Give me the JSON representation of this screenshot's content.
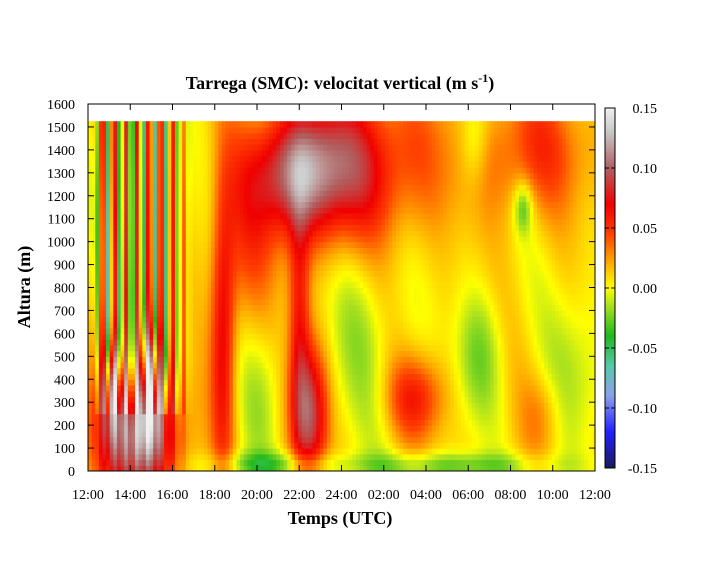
{
  "chart_data": {
    "type": "heatmap",
    "title": "Tarrega (SMC): velocitat vertical (m s",
    "title_superscript": "-1",
    "title_close": ")",
    "xlabel": "Temps (UTC)",
    "ylabel": "Altura (m)",
    "x_ticks": [
      "12:00",
      "14:00",
      "16:00",
      "18:00",
      "20:00",
      "22:00",
      "24:00",
      "02:00",
      "04:00",
      "06:00",
      "08:00",
      "10:00",
      "12:00"
    ],
    "y_ticks": [
      0,
      100,
      200,
      300,
      400,
      500,
      600,
      700,
      800,
      900,
      1000,
      1100,
      1200,
      1300,
      1400,
      1500,
      1600
    ],
    "ylim": [
      0,
      1600
    ],
    "data_top_altitude": 1525,
    "colorbar": {
      "range": [
        -0.15,
        0.15
      ],
      "ticks": [
        "0.15",
        "0.10",
        "0.05",
        "0.00",
        "-0.05",
        "-0.10",
        "-0.15"
      ],
      "tick_values": [
        0.15,
        0.1,
        0.05,
        0.0,
        -0.05,
        -0.1,
        -0.15
      ],
      "stops": [
        {
          "value": -0.15,
          "color": "#1a1a5a"
        },
        {
          "value": -0.12,
          "color": "#2020ff"
        },
        {
          "value": -0.09,
          "color": "#8aa0e8"
        },
        {
          "value": -0.065,
          "color": "#58c8a8"
        },
        {
          "value": -0.04,
          "color": "#1fb81f"
        },
        {
          "value": -0.015,
          "color": "#a8e020"
        },
        {
          "value": 0.0,
          "color": "#ffff00"
        },
        {
          "value": 0.02,
          "color": "#ffb000"
        },
        {
          "value": 0.045,
          "color": "#ff4000"
        },
        {
          "value": 0.07,
          "color": "#f00000"
        },
        {
          "value": 0.1,
          "color": "#b06060"
        },
        {
          "value": 0.13,
          "color": "#c8c8c8"
        },
        {
          "value": 0.15,
          "color": "#f0f0f0"
        }
      ]
    },
    "field_features": [
      {
        "kind": "updraft-core",
        "x_hours": 2.4,
        "alt": 150,
        "sx": 1.3,
        "sz": 200,
        "w": 0.11
      },
      {
        "kind": "updraft-plume",
        "x_hours": 2.9,
        "alt": 380,
        "sx": 0.4,
        "sz": 180,
        "w": 0.07
      },
      {
        "kind": "updraft-plume",
        "x_hours": 1.2,
        "alt": 350,
        "sx": 0.35,
        "sz": 150,
        "w": 0.06
      },
      {
        "kind": "updraft-plume",
        "x_hours": 6.4,
        "alt": 600,
        "sx": 0.4,
        "sz": 450,
        "w": 0.06
      },
      {
        "kind": "updraft-core",
        "x_hours": 10.5,
        "alt": 250,
        "sx": 0.6,
        "sz": 220,
        "w": 0.09
      },
      {
        "kind": "updraft-plume",
        "x_hours": 10.0,
        "alt": 700,
        "sx": 0.35,
        "sz": 350,
        "w": 0.05
      },
      {
        "kind": "updraft-aloft",
        "x_hours": 9.8,
        "alt": 1300,
        "sx": 1.5,
        "sz": 180,
        "w": 0.07
      },
      {
        "kind": "updraft-aloft",
        "x_hours": 11.5,
        "alt": 1300,
        "sx": 2.0,
        "sz": 250,
        "w": 0.04
      },
      {
        "kind": "updraft-aloft",
        "x_hours": 7.5,
        "alt": 1000,
        "sx": 1.0,
        "sz": 300,
        "w": 0.03
      },
      {
        "kind": "updraft",
        "x_hours": 15.5,
        "alt": 320,
        "sx": 1.0,
        "sz": 130,
        "w": 0.05
      },
      {
        "kind": "updraft-aloft",
        "x_hours": 13.5,
        "alt": 1350,
        "sx": 2.5,
        "sz": 250,
        "w": 0.04
      },
      {
        "kind": "updraft-aloft",
        "x_hours": 21.0,
        "alt": 1400,
        "sx": 2.0,
        "sz": 200,
        "w": 0.04
      },
      {
        "kind": "updraft",
        "x_hours": 21.5,
        "alt": 250,
        "sx": 0.7,
        "sz": 130,
        "w": 0.02
      },
      {
        "kind": "downdraft",
        "x_hours": 18.5,
        "alt": 500,
        "sx": 0.8,
        "sz": 200,
        "w": -0.03
      },
      {
        "kind": "downdraft",
        "x_hours": 23.0,
        "alt": 450,
        "sx": 1.0,
        "sz": 250,
        "w": -0.02
      },
      {
        "kind": "downdraft",
        "x_hours": 18.3,
        "alt": 1450,
        "sx": 0.5,
        "sz": 150,
        "w": -0.03
      },
      {
        "kind": "downdraft",
        "x_hours": 12.8,
        "alt": 600,
        "sx": 1.5,
        "sz": 350,
        "w": -0.02
      },
      {
        "kind": "downdraft",
        "x_hours": 8.2,
        "alt": 350,
        "sx": 0.7,
        "sz": 250,
        "w": -0.02
      },
      {
        "kind": "downdraft-aloft",
        "x_hours": 20.6,
        "alt": 1150,
        "sx": 0.3,
        "sz": 80,
        "w": -0.04
      },
      {
        "kind": "surface-downdraft",
        "x_hours": 8.5,
        "alt": 30,
        "sx": 2.0,
        "sz": 40,
        "w": -0.035
      },
      {
        "kind": "surface-downdraft",
        "x_hours": 17.0,
        "alt": 25,
        "sx": 3.5,
        "sz": 40,
        "w": -0.035
      }
    ],
    "convective_columns": {
      "start_hours": 0.3,
      "end_hours": 5.0,
      "period_hours": 0.55,
      "amplitude": 0.07
    }
  }
}
